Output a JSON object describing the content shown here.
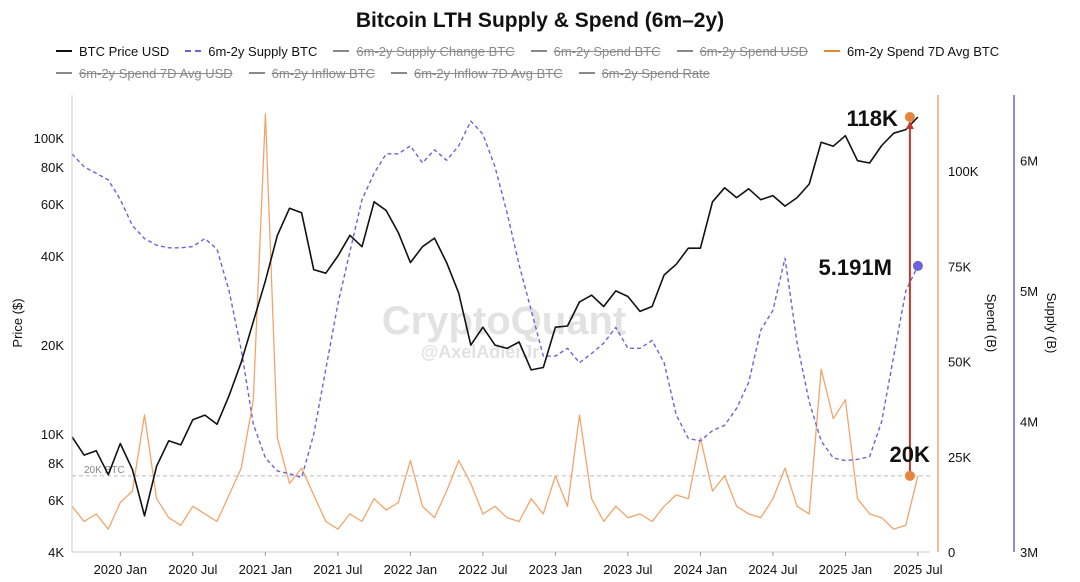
{
  "colors": {
    "price": "#111111",
    "supply": "#6c63d8",
    "spend": "#f2a56b",
    "spend_avg": "#e8853d",
    "annotation_line": "#c0392b",
    "hidden": "#8a8a8a"
  },
  "watermark": {
    "main": "CryptoQuant",
    "handle": "@AxelAdlerJr"
  },
  "chart_data": {
    "type": "line",
    "title": "Bitcoin LTH Supply & Spend (6m–2y)",
    "legend": [
      {
        "name": "BTC Price USD",
        "visible": true,
        "style": "solid",
        "color": "#111111"
      },
      {
        "name": "6m-2y Supply BTC",
        "visible": true,
        "style": "dashed",
        "color": "#6c63d8"
      },
      {
        "name": "6m-2y Supply Change BTC",
        "visible": false,
        "style": "solid",
        "color": "#8a8a8a"
      },
      {
        "name": "6m-2y Spend BTC",
        "visible": false,
        "style": "solid",
        "color": "#8a8a8a"
      },
      {
        "name": "6m-2y Spend USD",
        "visible": false,
        "style": "solid",
        "color": "#8a8a8a"
      },
      {
        "name": "6m-2y Spend 7D Avg BTC",
        "visible": true,
        "style": "solid",
        "color": "#e8853d"
      },
      {
        "name": "6m-2y Spend 7D Avg USD",
        "visible": false,
        "style": "solid",
        "color": "#8a8a8a"
      },
      {
        "name": "6m-2y Inflow BTC",
        "visible": false,
        "style": "solid",
        "color": "#8a8a8a"
      },
      {
        "name": "6m-2y Inflow 7D Avg BTC",
        "visible": false,
        "style": "solid",
        "color": "#8a8a8a"
      },
      {
        "name": "6m-2y Spend Rate",
        "visible": false,
        "style": "solid",
        "color": "#8a8a8a"
      }
    ],
    "x_ticks": [
      "2020 Jan",
      "2020 Jul",
      "2021 Jan",
      "2021 Jul",
      "2022 Jan",
      "2022 Jul",
      "2023 Jan",
      "2023 Jul",
      "2024 Jan",
      "2024 Jul",
      "2025 Jan",
      "2025 Jul"
    ],
    "x_range": [
      "2019-09",
      "2025-08"
    ],
    "axes": {
      "price": {
        "label": "Price ($)",
        "scale": "log",
        "range": [
          4000,
          140000
        ],
        "ticks": [
          4000,
          6000,
          8000,
          10000,
          20000,
          40000,
          60000,
          80000,
          100000
        ],
        "tick_labels": [
          "4K",
          "6K",
          "8K",
          "10K",
          "20K",
          "40K",
          "60K",
          "80K",
          "100K"
        ]
      },
      "spend": {
        "label": "Spend (B)",
        "scale": "linear",
        "range": [
          0,
          120000
        ],
        "ticks": [
          0,
          25000,
          50000,
          75000,
          100000
        ],
        "tick_labels": [
          "0",
          "25K",
          "50K",
          "75K",
          "100K"
        ]
      },
      "supply": {
        "label": "Supply (B)",
        "scale": "linear",
        "range": [
          3000000,
          6500000
        ],
        "ticks": [
          3000000,
          4000000,
          5000000,
          6000000
        ],
        "tick_labels": [
          "3M",
          "4M",
          "5M",
          "6M"
        ]
      }
    },
    "reference_line": {
      "label": "20K BTC",
      "value": 20000,
      "axis": "spend"
    },
    "annotations": [
      {
        "label": "118K",
        "series": "BTC Price USD",
        "value": 118000
      },
      {
        "label": "5.191M",
        "series": "6m-2y Supply BTC",
        "value": 5191000
      },
      {
        "label": "20K",
        "series": "6m-2y Spend 7D Avg BTC",
        "value": 20000
      }
    ],
    "series": [
      {
        "name": "BTC Price USD",
        "axis": "price",
        "x": [
          "2019-09",
          "2019-10",
          "2019-11",
          "2019-12",
          "2020-01",
          "2020-02",
          "2020-03",
          "2020-04",
          "2020-05",
          "2020-06",
          "2020-07",
          "2020-08",
          "2020-09",
          "2020-10",
          "2020-11",
          "2020-12",
          "2021-01",
          "2021-02",
          "2021-03",
          "2021-04",
          "2021-05",
          "2021-06",
          "2021-07",
          "2021-08",
          "2021-09",
          "2021-10",
          "2021-11",
          "2021-12",
          "2022-01",
          "2022-02",
          "2022-03",
          "2022-04",
          "2022-05",
          "2022-06",
          "2022-07",
          "2022-08",
          "2022-09",
          "2022-10",
          "2022-11",
          "2022-12",
          "2023-01",
          "2023-02",
          "2023-03",
          "2023-04",
          "2023-05",
          "2023-06",
          "2023-07",
          "2023-08",
          "2023-09",
          "2023-10",
          "2023-11",
          "2023-12",
          "2024-01",
          "2024-02",
          "2024-03",
          "2024-04",
          "2024-05",
          "2024-06",
          "2024-07",
          "2024-08",
          "2024-09",
          "2024-10",
          "2024-11",
          "2024-12",
          "2025-01",
          "2025-02",
          "2025-03",
          "2025-04",
          "2025-05",
          "2025-06",
          "2025-07"
        ],
        "y": [
          9800,
          8500,
          8800,
          7300,
          9300,
          7600,
          5300,
          7800,
          9500,
          9200,
          11200,
          11600,
          10800,
          13500,
          17500,
          24000,
          33000,
          47000,
          58000,
          56000,
          36000,
          35000,
          40000,
          47000,
          43000,
          61000,
          57000,
          48000,
          38000,
          43000,
          46000,
          38000,
          30000,
          20000,
          23000,
          20000,
          19500,
          20500,
          16500,
          16800,
          23000,
          23200,
          28000,
          29500,
          27000,
          30500,
          29200,
          26000,
          27000,
          34500,
          37500,
          42500,
          42500,
          61000,
          68000,
          63000,
          67500,
          62000,
          64000,
          59000,
          63000,
          70000,
          97000,
          94000,
          102000,
          84000,
          82500,
          94500,
          104000,
          107000,
          118000
        ]
      },
      {
        "name": "6m-2y Supply BTC",
        "axis": "supply",
        "x": [
          "2019-09",
          "2019-10",
          "2019-11",
          "2019-12",
          "2020-01",
          "2020-02",
          "2020-03",
          "2020-04",
          "2020-05",
          "2020-06",
          "2020-07",
          "2020-08",
          "2020-09",
          "2020-10",
          "2020-11",
          "2020-12",
          "2021-01",
          "2021-02",
          "2021-03",
          "2021-04",
          "2021-05",
          "2021-06",
          "2021-07",
          "2021-08",
          "2021-09",
          "2021-10",
          "2021-11",
          "2021-12",
          "2022-01",
          "2022-02",
          "2022-03",
          "2022-04",
          "2022-05",
          "2022-06",
          "2022-07",
          "2022-08",
          "2022-09",
          "2022-10",
          "2022-11",
          "2022-12",
          "2023-01",
          "2023-02",
          "2023-03",
          "2023-04",
          "2023-05",
          "2023-06",
          "2023-07",
          "2023-08",
          "2023-09",
          "2023-10",
          "2023-11",
          "2023-12",
          "2024-01",
          "2024-02",
          "2024-03",
          "2024-04",
          "2024-05",
          "2024-06",
          "2024-07",
          "2024-08",
          "2024-09",
          "2024-10",
          "2024-11",
          "2024-12",
          "2025-01",
          "2025-02",
          "2025-03",
          "2025-04",
          "2025-05",
          "2025-06",
          "2025-07"
        ],
        "y": [
          6050000,
          5950000,
          5900000,
          5850000,
          5700000,
          5500000,
          5400000,
          5350000,
          5330000,
          5330000,
          5340000,
          5400000,
          5320000,
          5000000,
          4550000,
          3980000,
          3720000,
          3620000,
          3600000,
          3570000,
          3900000,
          4400000,
          4900000,
          5300000,
          5700000,
          5900000,
          6050000,
          6050000,
          6110000,
          5980000,
          6080000,
          6000000,
          6110000,
          6300000,
          6200000,
          5950000,
          5600000,
          5200000,
          4850000,
          4500000,
          4500000,
          4560000,
          4450000,
          4520000,
          4600000,
          4720000,
          4560000,
          4560000,
          4620000,
          4450000,
          4050000,
          3870000,
          3850000,
          3930000,
          3970000,
          4100000,
          4300000,
          4700000,
          4850000,
          5250000,
          4600000,
          4150000,
          3850000,
          3720000,
          3700000,
          3710000,
          3730000,
          4000000,
          4500000,
          5000000,
          5191000
        ]
      },
      {
        "name": "6m-2y Spend 7D Avg BTC",
        "axis": "spend",
        "x": [
          "2019-09",
          "2019-10",
          "2019-11",
          "2019-12",
          "2020-01",
          "2020-02",
          "2020-03",
          "2020-04",
          "2020-05",
          "2020-06",
          "2020-07",
          "2020-08",
          "2020-09",
          "2020-10",
          "2020-11",
          "2020-12",
          "2021-01",
          "2021-02",
          "2021-03",
          "2021-04",
          "2021-05",
          "2021-06",
          "2021-07",
          "2021-08",
          "2021-09",
          "2021-10",
          "2021-11",
          "2021-12",
          "2022-01",
          "2022-02",
          "2022-03",
          "2022-04",
          "2022-05",
          "2022-06",
          "2022-07",
          "2022-08",
          "2022-09",
          "2022-10",
          "2022-11",
          "2022-12",
          "2023-01",
          "2023-02",
          "2023-03",
          "2023-04",
          "2023-05",
          "2023-06",
          "2023-07",
          "2023-08",
          "2023-09",
          "2023-10",
          "2023-11",
          "2023-12",
          "2024-01",
          "2024-02",
          "2024-03",
          "2024-04",
          "2024-05",
          "2024-06",
          "2024-07",
          "2024-08",
          "2024-09",
          "2024-10",
          "2024-11",
          "2024-12",
          "2025-01",
          "2025-02",
          "2025-03",
          "2025-04",
          "2025-05",
          "2025-06",
          "2025-07"
        ],
        "y": [
          12000,
          8000,
          10000,
          6000,
          13000,
          16000,
          36000,
          14000,
          9000,
          7000,
          12000,
          10000,
          8000,
          15000,
          22000,
          40000,
          115000,
          30000,
          18000,
          22000,
          15000,
          8000,
          6000,
          10000,
          8000,
          14000,
          11000,
          13000,
          24000,
          12000,
          9000,
          16000,
          24000,
          18000,
          10000,
          12000,
          9000,
          8000,
          14000,
          10000,
          20000,
          12000,
          36000,
          14000,
          8000,
          12000,
          9000,
          10000,
          8000,
          12000,
          15000,
          14000,
          30000,
          16000,
          20000,
          12000,
          10000,
          9000,
          14000,
          22000,
          12000,
          10000,
          48000,
          35000,
          40000,
          14000,
          10000,
          9000,
          6000,
          7000,
          20000
        ]
      }
    ]
  }
}
